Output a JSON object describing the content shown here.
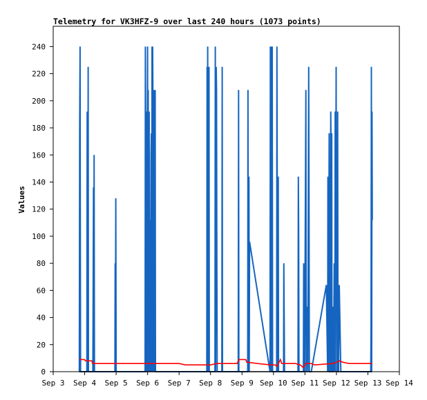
{
  "chart_data": {
    "type": "line",
    "title": "Telemetry for VK3HFZ-9 over last 240 hours (1073 points)",
    "xlabel": "",
    "ylabel": "Values",
    "xlim": [
      0,
      11
    ],
    "ylim": [
      0,
      255
    ],
    "x_ticks": [
      {
        "x": 0,
        "label": "Sep 3"
      },
      {
        "x": 1,
        "label": "Sep 4"
      },
      {
        "x": 2,
        "label": "Sep 5"
      },
      {
        "x": 3,
        "label": "Sep 6"
      },
      {
        "x": 4,
        "label": "Sep 7"
      },
      {
        "x": 5,
        "label": "Sep 8"
      },
      {
        "x": 6,
        "label": "Sep 9"
      },
      {
        "x": 7,
        "label": "Sep 10"
      },
      {
        "x": 8,
        "label": "Sep 11"
      },
      {
        "x": 9,
        "label": "Sep 12"
      },
      {
        "x": 10,
        "label": "Sep 13"
      },
      {
        "x": 11,
        "label": "Sep 14"
      }
    ],
    "y_ticks": [
      0,
      20,
      40,
      60,
      80,
      100,
      120,
      140,
      160,
      180,
      200,
      220,
      240
    ],
    "grid": false,
    "legend": "none",
    "series": [
      {
        "color": "#1565c0",
        "points": [
          [
            0.83,
            0
          ],
          [
            0.84,
            177
          ],
          [
            0.855,
            240
          ],
          [
            0.86,
            128
          ],
          [
            0.87,
            0
          ],
          [
            1.07,
            0
          ],
          [
            1.08,
            192
          ],
          [
            1.09,
            176
          ],
          [
            1.1,
            0
          ],
          [
            1.11,
            225
          ],
          [
            1.12,
            0
          ],
          [
            1.26,
            0
          ],
          [
            1.27,
            56
          ],
          [
            1.28,
            136
          ],
          [
            1.29,
            0
          ],
          [
            1.3,
            160
          ],
          [
            1.31,
            0
          ],
          [
            1.96,
            0
          ],
          [
            1.97,
            80
          ],
          [
            1.98,
            40
          ],
          [
            1.99,
            128
          ],
          [
            2.0,
            0
          ],
          [
            2.92,
            0
          ],
          [
            2.93,
            240
          ],
          [
            2.94,
            176
          ],
          [
            2.95,
            0
          ],
          [
            2.96,
            192
          ],
          [
            2.98,
            0
          ],
          [
            3.0,
            240
          ],
          [
            3.01,
            0
          ],
          [
            3.02,
            208
          ],
          [
            3.03,
            0
          ],
          [
            3.05,
            192
          ],
          [
            3.06,
            0
          ],
          [
            3.08,
            112
          ],
          [
            3.09,
            0
          ],
          [
            3.11,
            160
          ],
          [
            3.12,
            176
          ],
          [
            3.13,
            0
          ],
          [
            3.14,
            240
          ],
          [
            3.15,
            0
          ],
          [
            3.16,
            240
          ],
          [
            3.17,
            192
          ],
          [
            3.18,
            0
          ],
          [
            3.19,
            144
          ],
          [
            3.2,
            0
          ],
          [
            3.21,
            208
          ],
          [
            3.22,
            0
          ],
          [
            3.24,
            208
          ],
          [
            3.25,
            0
          ],
          [
            4.88,
            0
          ],
          [
            4.89,
            225
          ],
          [
            4.9,
            0
          ],
          [
            4.91,
            240
          ],
          [
            4.92,
            96
          ],
          [
            4.93,
            0
          ],
          [
            4.95,
            225
          ],
          [
            4.96,
            0
          ],
          [
            5.14,
            0
          ],
          [
            5.15,
            240
          ],
          [
            5.16,
            0
          ],
          [
            5.18,
            225
          ],
          [
            5.19,
            208
          ],
          [
            5.2,
            96
          ],
          [
            5.21,
            0
          ],
          [
            5.36,
            0
          ],
          [
            5.37,
            225
          ],
          [
            5.38,
            0
          ],
          [
            5.88,
            0
          ],
          [
            5.89,
            208
          ],
          [
            5.9,
            0
          ],
          [
            6.18,
            0
          ],
          [
            6.19,
            208
          ],
          [
            6.2,
            0
          ],
          [
            6.22,
            144
          ],
          [
            6.23,
            0
          ],
          [
            6.24,
            96
          ],
          [
            6.89,
            0
          ],
          [
            6.9,
            240
          ],
          [
            6.91,
            0
          ],
          [
            6.92,
            240
          ],
          [
            6.93,
            0
          ],
          [
            6.94,
            240
          ],
          [
            6.95,
            0
          ],
          [
            6.96,
            240
          ],
          [
            6.97,
            0
          ],
          [
            7.1,
            0
          ],
          [
            7.11,
            240
          ],
          [
            7.12,
            120
          ],
          [
            7.13,
            0
          ],
          [
            7.15,
            144
          ],
          [
            7.16,
            0
          ],
          [
            7.32,
            0
          ],
          [
            7.33,
            80
          ],
          [
            7.35,
            0
          ],
          [
            7.78,
            0
          ],
          [
            7.79,
            144
          ],
          [
            7.8,
            96
          ],
          [
            7.81,
            0
          ],
          [
            7.95,
            0
          ],
          [
            7.96,
            80
          ],
          [
            7.97,
            0
          ],
          [
            7.98,
            40
          ],
          [
            7.99,
            0
          ],
          [
            8.03,
            208
          ],
          [
            8.04,
            0
          ],
          [
            8.08,
            48
          ],
          [
            8.09,
            0
          ],
          [
            8.12,
            225
          ],
          [
            8.13,
            112
          ],
          [
            8.14,
            0
          ],
          [
            8.2,
            0
          ],
          [
            8.68,
            64
          ],
          [
            8.72,
            0
          ],
          [
            8.73,
            144
          ],
          [
            8.74,
            96
          ],
          [
            8.75,
            0
          ],
          [
            8.77,
            176
          ],
          [
            8.78,
            0
          ],
          [
            8.8,
            0
          ],
          [
            8.82,
            192
          ],
          [
            8.83,
            160
          ],
          [
            8.84,
            0
          ],
          [
            8.85,
            176
          ],
          [
            8.86,
            0
          ],
          [
            8.88,
            0
          ],
          [
            8.89,
            0
          ],
          [
            8.9,
            48
          ],
          [
            8.91,
            0
          ],
          [
            8.93,
            80
          ],
          [
            8.95,
            0
          ],
          [
            8.96,
            192
          ],
          [
            8.97,
            0
          ],
          [
            8.99,
            225
          ],
          [
            9.0,
            48
          ],
          [
            9.01,
            120
          ],
          [
            9.02,
            0
          ],
          [
            9.04,
            192
          ],
          [
            9.05,
            0
          ],
          [
            9.07,
            0
          ],
          [
            9.09,
            64
          ],
          [
            9.14,
            0
          ],
          [
            9.52,
            0
          ],
          [
            9.96,
            0
          ],
          [
            10.09,
            0
          ],
          [
            10.1,
            32
          ],
          [
            10.11,
            225
          ],
          [
            10.12,
            0
          ],
          [
            10.13,
            192
          ],
          [
            10.14,
            112
          ]
        ]
      },
      {
        "color": "#ff0000",
        "points": [
          [
            0.83,
            9
          ],
          [
            1.0,
            9
          ],
          [
            1.02,
            8
          ],
          [
            1.23,
            8
          ],
          [
            1.25,
            6
          ],
          [
            2.2,
            6
          ],
          [
            3.0,
            6
          ],
          [
            4.0,
            6
          ],
          [
            4.2,
            5
          ],
          [
            5.0,
            5
          ],
          [
            5.2,
            6
          ],
          [
            5.85,
            6
          ],
          [
            5.9,
            9
          ],
          [
            6.12,
            9
          ],
          [
            6.15,
            7
          ],
          [
            6.5,
            6
          ],
          [
            6.9,
            5
          ],
          [
            7.05,
            5
          ],
          [
            7.1,
            4
          ],
          [
            7.18,
            7
          ],
          [
            7.22,
            9
          ],
          [
            7.26,
            6
          ],
          [
            7.7,
            6
          ],
          [
            7.85,
            5
          ],
          [
            7.95,
            3
          ],
          [
            8.02,
            6
          ],
          [
            8.2,
            6
          ],
          [
            8.3,
            5
          ],
          [
            8.9,
            6
          ],
          [
            9.0,
            7
          ],
          [
            9.1,
            8
          ],
          [
            9.2,
            7
          ],
          [
            9.4,
            6
          ],
          [
            10.14,
            6
          ]
        ]
      },
      {
        "color": "#000000",
        "points": [
          [
            0.82,
            0
          ],
          [
            10.14,
            0
          ]
        ]
      }
    ]
  }
}
